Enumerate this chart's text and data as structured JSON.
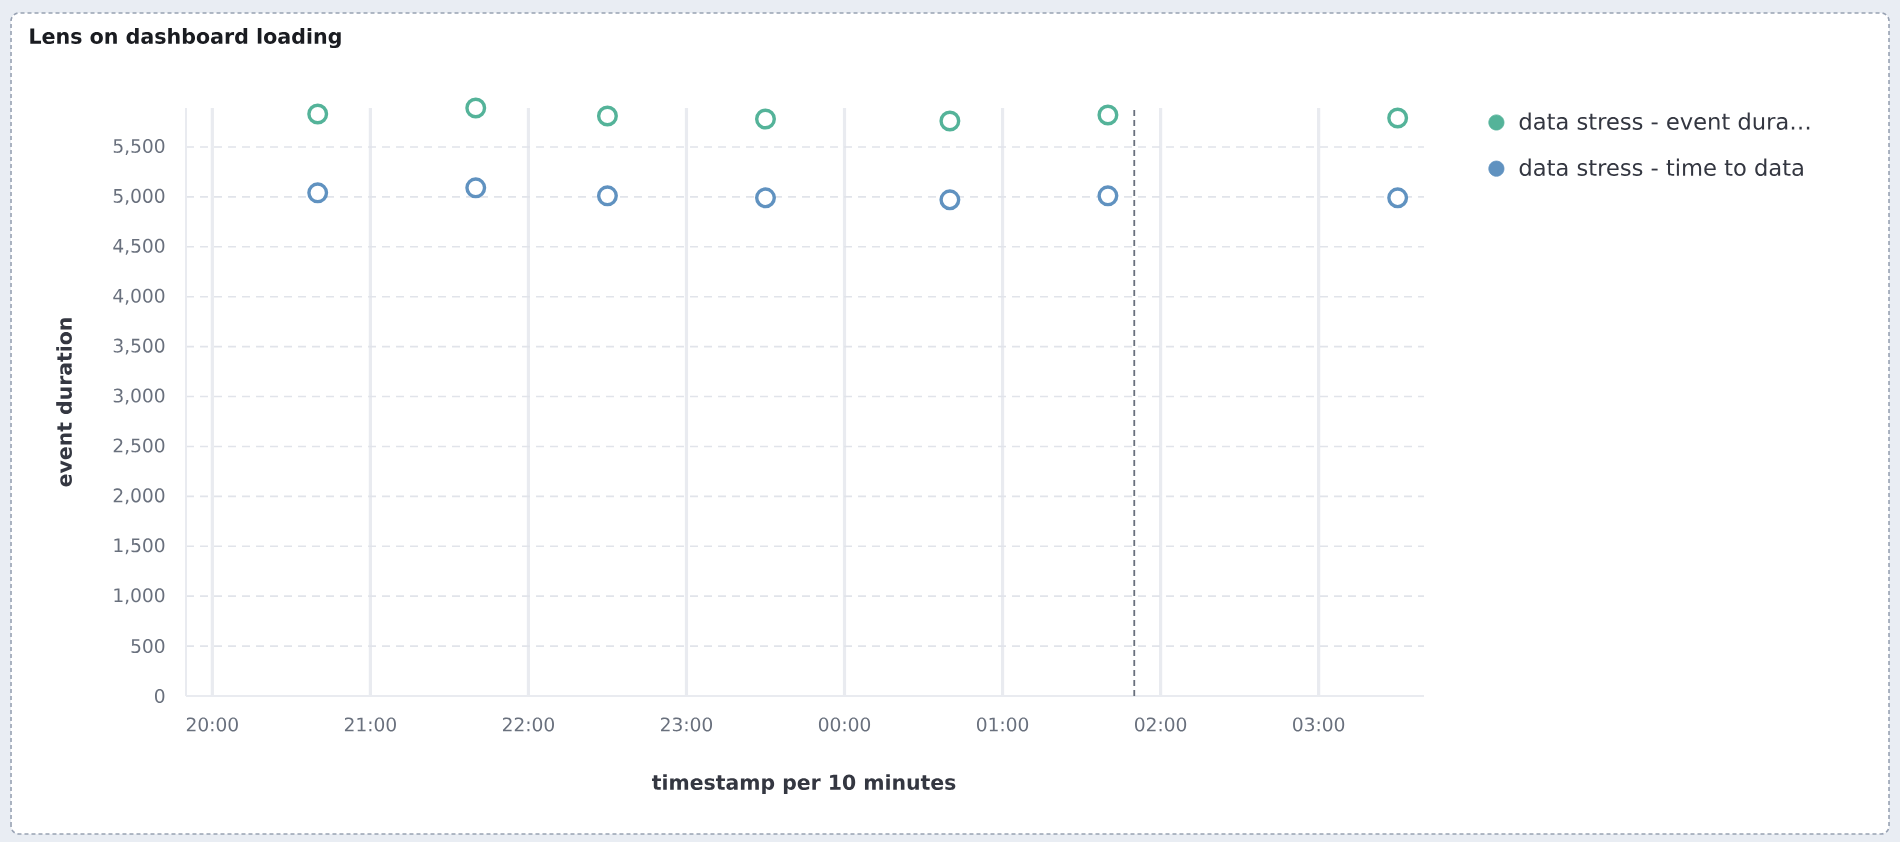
{
  "chart_data": {
    "type": "scatter",
    "title": "Lens on dashboard loading",
    "xlabel": "timestamp per 10 minutes",
    "ylabel": "event duration",
    "x": [
      "2000-01-01T20:40",
      "2000-01-01T21:40",
      "2000-01-01T22:30",
      "2000-01-01T23:30",
      "2000-01-02T00:40",
      "2000-01-02T01:40",
      "2000-01-02T03:30"
    ],
    "series": [
      {
        "name": "data stress - event dura…",
        "color": "#54b399",
        "values": [
          5830,
          5890,
          5810,
          5780,
          5760,
          5820,
          5790
        ]
      },
      {
        "name": "data stress - time to data",
        "color": "#6092c0",
        "values": [
          5040,
          5090,
          5010,
          4990,
          4970,
          5010,
          4990
        ]
      }
    ],
    "xlim": [
      "2000-01-01T19:50",
      "2000-01-02T03:40"
    ],
    "ylim": [
      0,
      5890
    ],
    "xticks": [
      {
        "value": "2000-01-01T20:00",
        "label": "20:00"
      },
      {
        "value": "2000-01-01T21:00",
        "label": "21:00"
      },
      {
        "value": "2000-01-01T22:00",
        "label": "22:00"
      },
      {
        "value": "2000-01-01T23:00",
        "label": "23:00"
      },
      {
        "value": "2000-01-02T00:00",
        "label": "00:00"
      },
      {
        "value": "2000-01-02T01:00",
        "label": "01:00"
      },
      {
        "value": "2000-01-02T02:00",
        "label": "02:00"
      },
      {
        "value": "2000-01-02T03:00",
        "label": "03:00"
      }
    ],
    "yticks": [
      0,
      500,
      {
        "value": 1000,
        "label": "1,000"
      },
      {
        "value": 1500,
        "label": "1,500"
      },
      {
        "value": 2000,
        "label": "2,000"
      },
      {
        "value": 2500,
        "label": "2,500"
      },
      {
        "value": 3000,
        "label": "3,000"
      },
      {
        "value": 3500,
        "label": "3,500"
      },
      {
        "value": 4000,
        "label": "4,000"
      },
      {
        "value": 4500,
        "label": "4,500"
      },
      {
        "value": 5000,
        "label": "5,000"
      },
      {
        "value": 5500,
        "label": "5,500"
      }
    ],
    "ref_lines": [
      {
        "axis": "x",
        "value": "2000-01-02T01:50",
        "color": "#69707d",
        "line_style": "dashed"
      }
    ],
    "grid": true,
    "legend": "right",
    "marker": "circle"
  }
}
